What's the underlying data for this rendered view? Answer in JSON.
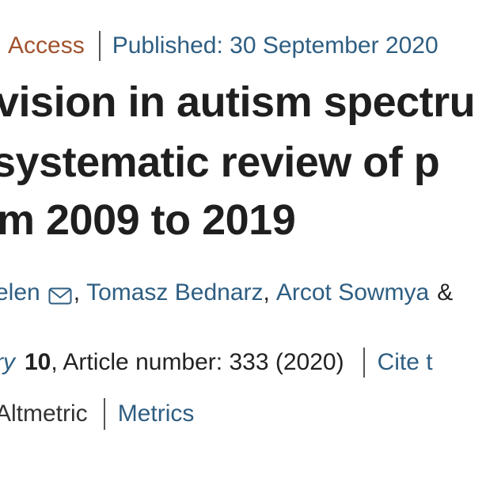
{
  "meta": {
    "access_label": "Access",
    "published_label": "Published: 30 September 2020"
  },
  "title": {
    "line1": "vision in autism spectru",
    "line2": "systematic review of p",
    "line3": "m 2009 to 2019"
  },
  "authors": {
    "author1": "elen",
    "author1_icon": "mail-icon",
    "comma1": ",",
    "author2": "Tomasz Bednarz",
    "comma2": ",",
    "author3": "Arcot Sowmya",
    "ampersand": "&"
  },
  "journal": {
    "journal_fragment": "ry",
    "volume": "10",
    "article_info": ", Article number: 333 (2020)",
    "cite_label": "Cite t"
  },
  "metrics_bar": {
    "altmetric_label": "Altmetric",
    "metrics_label": "Metrics"
  },
  "colors": {
    "link": "#2e5e82",
    "access": "#a0522d",
    "text": "#222222"
  }
}
